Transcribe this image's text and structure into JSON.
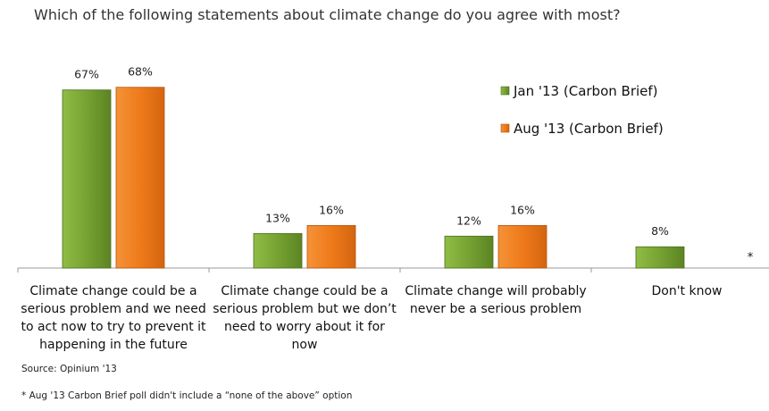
{
  "chart_data": {
    "type": "bar",
    "title": "Which of the following statements about climate change do you agree with most?",
    "categories": [
      [
        "Climate change could be a",
        "serious problem and we need",
        "to act now to try to prevent it",
        "happening in the future"
      ],
      [
        "Climate change could be a",
        "serious problem but we don’t",
        "need to worry about it for",
        "now"
      ],
      [
        "Climate change will probably",
        "never be a serious problem"
      ],
      [
        "Don't know"
      ]
    ],
    "series": [
      {
        "name": "Jan '13 (Carbon Brief)",
        "color": "#76a232",
        "values": [
          67,
          13,
          12,
          8
        ],
        "labels": [
          "67%",
          "13%",
          "12%",
          "8%"
        ]
      },
      {
        "name": "Aug '13 (Carbon Brief)",
        "color": "#ee7a1a",
        "values": [
          68,
          16,
          16,
          null
        ],
        "labels": [
          "68%",
          "16%",
          "16%",
          ""
        ]
      }
    ],
    "category_markers": [
      "",
      "",
      "",
      "*"
    ],
    "ylim": [
      0,
      80
    ],
    "grid": false,
    "legend_position": "top-right",
    "source": "Source: Opinium '13",
    "footnote": "* Aug '13 Carbon Brief poll didn't include a  “none of the above” option"
  }
}
